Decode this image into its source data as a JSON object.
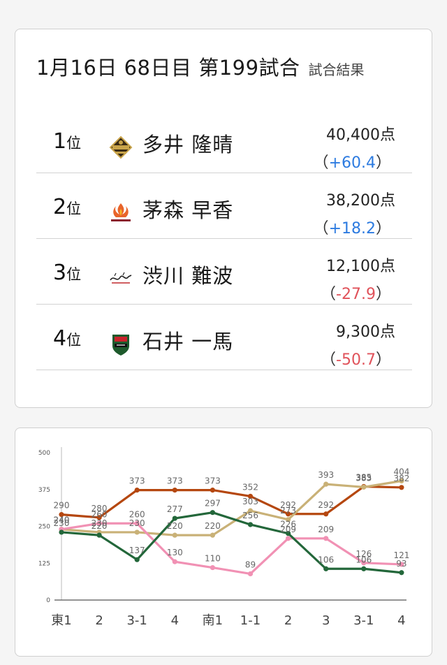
{
  "header": {
    "title": "1月16日 68日目 第199試合",
    "subtitle": "試合結果"
  },
  "results": [
    {
      "rank": "1",
      "rank_unit": "位",
      "logo": "phoenix-badge-logo",
      "name": "多井 隆晴",
      "points": "40,400点",
      "diff_open": "（",
      "diff": "+60.4",
      "diff_close": "）",
      "diff_sign": "pos"
    },
    {
      "rank": "2",
      "rank_unit": "位",
      "logo": "flame-phoenix-logo",
      "name": "茅森 早香",
      "points": "38,200点",
      "diff_open": "（",
      "diff": "+18.2",
      "diff_close": "）",
      "diff_sign": "pos"
    },
    {
      "rank": "3",
      "rank_unit": "位",
      "logo": "script-wordmark-logo",
      "name": "渋川 難波",
      "points": "12,100点",
      "diff_open": "（",
      "diff": "-27.9",
      "diff_close": "）",
      "diff_sign": "neg"
    },
    {
      "rank": "4",
      "rank_unit": "位",
      "logo": "jets-shield-logo",
      "name": "石井 一馬",
      "points": "9,300点",
      "diff_open": "（",
      "diff": "-50.7",
      "diff_close": "）",
      "diff_sign": "neg"
    }
  ],
  "chart_data": {
    "type": "line",
    "categories": [
      "東1",
      "2",
      "3-1",
      "4",
      "南1",
      "1-1",
      "2",
      "3",
      "3-1",
      "4"
    ],
    "yticks": [
      "0",
      "125",
      "250",
      "375",
      "500"
    ],
    "ylim": [
      0,
      500
    ],
    "grid": false,
    "series": [
      {
        "color": "#b5470f",
        "values": [
          290,
          280,
          373,
          373,
          373,
          352,
          292,
          292,
          385,
          382
        ]
      },
      {
        "color": "#c9b177",
        "values": [
          240,
          230,
          230,
          220,
          220,
          303,
          273,
          393,
          383,
          404
        ]
      },
      {
        "color": "#f191b4",
        "values": [
          240,
          260,
          260,
          130,
          110,
          89,
          209,
          209,
          126,
          121
        ]
      },
      {
        "color": "#23673a",
        "values": [
          230,
          220,
          137,
          277,
          297,
          256,
          226,
          106,
          106,
          93
        ]
      }
    ]
  }
}
